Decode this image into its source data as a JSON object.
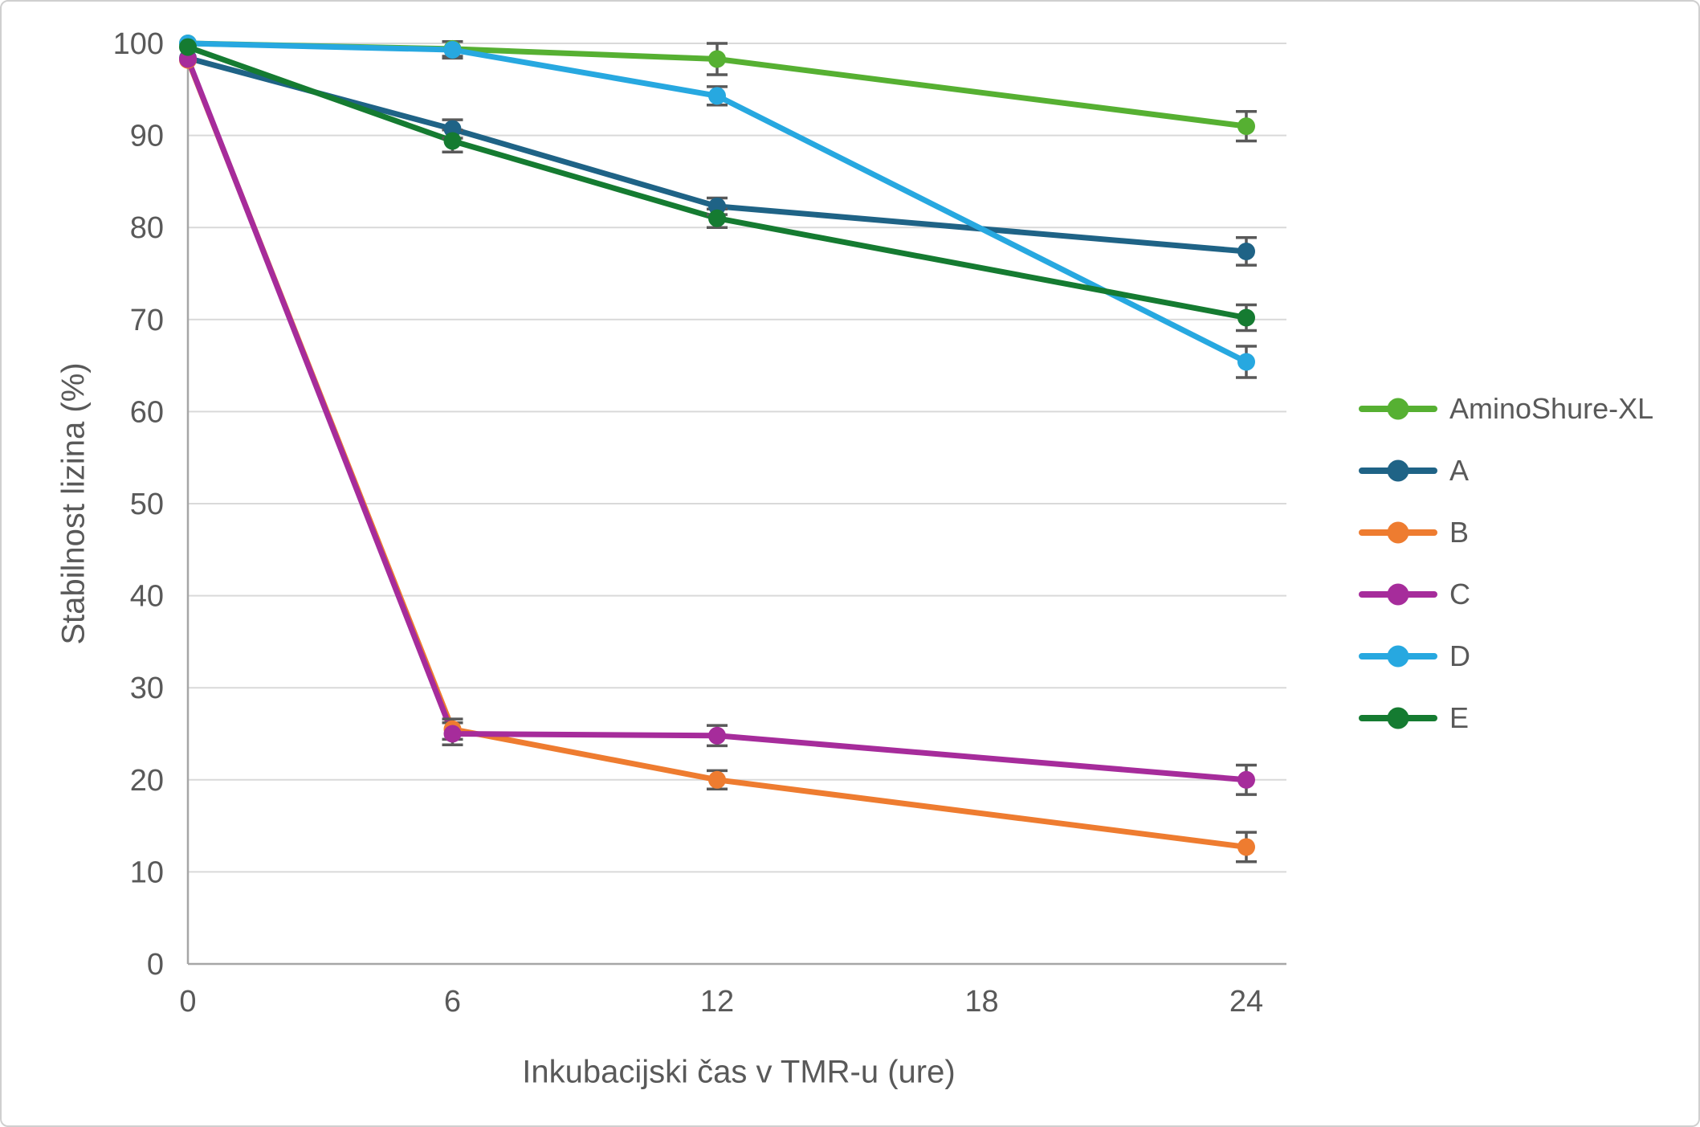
{
  "chart_data": {
    "type": "line",
    "title": "",
    "xlabel": "Inkubacijski čas v TMR-u (ure)",
    "ylabel": "Stabilnost lizina (%)",
    "x": [
      0,
      6,
      12,
      24
    ],
    "x_ticks": [
      0,
      6,
      12,
      18,
      24
    ],
    "y_ticks": [
      0,
      10,
      20,
      30,
      40,
      50,
      60,
      70,
      80,
      90,
      100
    ],
    "xlim": [
      0,
      24
    ],
    "ylim": [
      0,
      100
    ],
    "grid": "horizontal",
    "legend_position": "right-middle",
    "gridline_color": "#D9D9D9",
    "axis_line_color": "#A6A6A6",
    "error_bar_color": "#595959",
    "text_color": "#595959",
    "series": [
      {
        "name": "AminoShure-XL",
        "color": "#56B032",
        "values": [
          100,
          99.4,
          98.3,
          91.0
        ],
        "errors": [
          0,
          0.8,
          1.7,
          1.6
        ]
      },
      {
        "name": "A",
        "color": "#1F6386",
        "values": [
          98.4,
          90.7,
          82.3,
          77.4
        ],
        "errors": [
          0,
          1.0,
          0.9,
          1.5
        ]
      },
      {
        "name": "B",
        "color": "#EE7C30",
        "values": [
          98.2,
          25.5,
          20.0,
          12.7
        ],
        "errors": [
          0,
          1.1,
          1.0,
          1.6
        ]
      },
      {
        "name": "C",
        "color": "#A62C9B",
        "values": [
          98.3,
          25.0,
          24.8,
          20.0
        ],
        "errors": [
          0,
          1.2,
          1.1,
          1.6
        ]
      },
      {
        "name": "D",
        "color": "#27A8E0",
        "values": [
          100,
          99.3,
          94.3,
          65.4
        ],
        "errors": [
          0,
          0.9,
          1.0,
          1.7
        ]
      },
      {
        "name": "E",
        "color": "#157B31",
        "values": [
          99.6,
          89.4,
          81.0,
          70.2
        ],
        "errors": [
          0,
          1.2,
          1.0,
          1.4
        ]
      }
    ]
  }
}
